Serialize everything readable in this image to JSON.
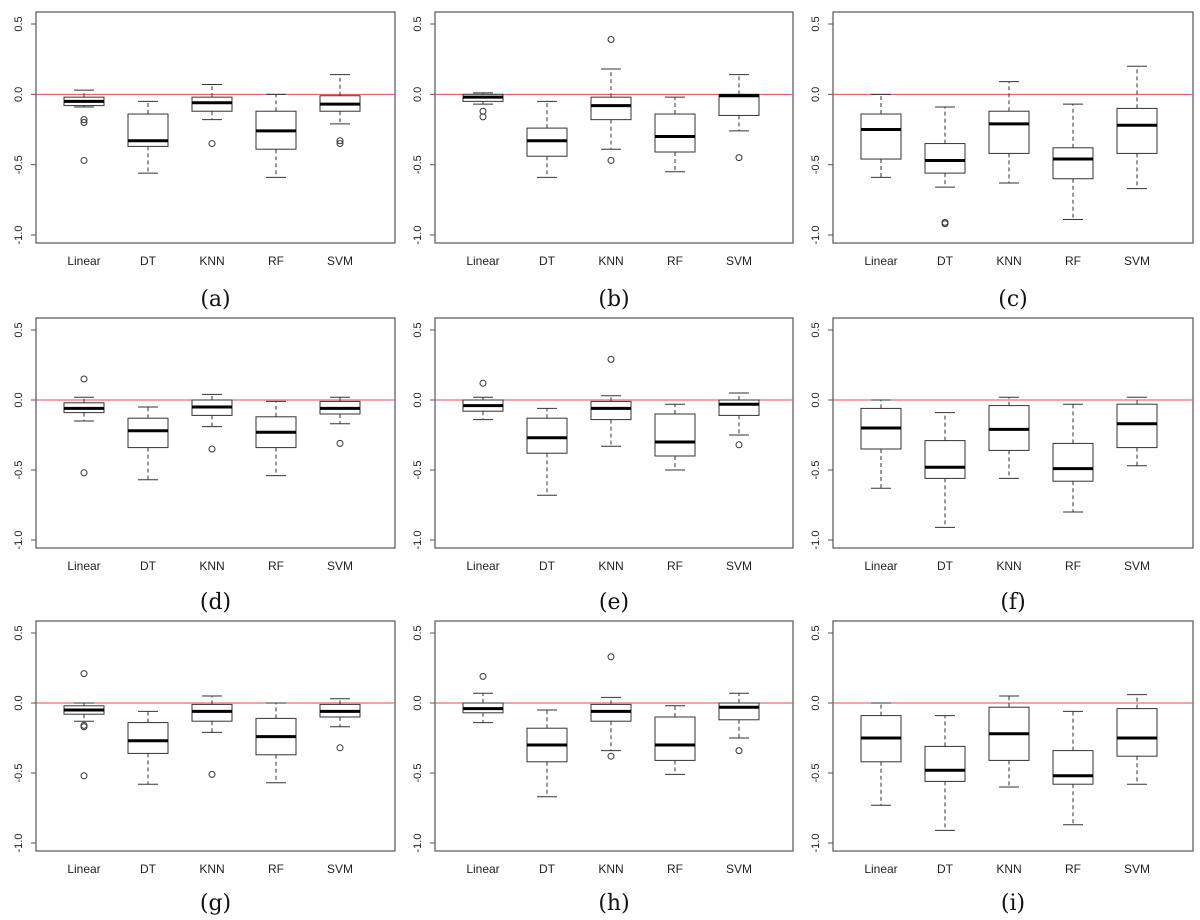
{
  "chart_data": [
    {
      "type": "boxplot",
      "panel_label": "(a)",
      "categories": [
        "Linear",
        "DT",
        "KNN",
        "RF",
        "SVM"
      ],
      "ylim": [
        -1.0,
        0.5
      ],
      "yticks": [
        "0.5",
        "0.0",
        "-0.5",
        "-1.0"
      ],
      "reference_line": 0.0,
      "boxes": [
        {
          "whisker_low": -0.09,
          "q1": -0.08,
          "median": -0.05,
          "q3": -0.02,
          "whisker_high": 0.03,
          "outliers": [
            -0.18,
            -0.2,
            -0.47
          ]
        },
        {
          "whisker_low": -0.56,
          "q1": -0.37,
          "median": -0.33,
          "q3": -0.14,
          "whisker_high": -0.05,
          "outliers": []
        },
        {
          "whisker_low": -0.18,
          "q1": -0.12,
          "median": -0.06,
          "q3": -0.02,
          "whisker_high": 0.07,
          "outliers": [
            -0.35
          ]
        },
        {
          "whisker_low": -0.59,
          "q1": -0.39,
          "median": -0.26,
          "q3": -0.12,
          "whisker_high": 0.0,
          "outliers": []
        },
        {
          "whisker_low": -0.21,
          "q1": -0.12,
          "median": -0.07,
          "q3": -0.01,
          "whisker_high": 0.14,
          "outliers": [
            -0.33,
            -0.35
          ]
        }
      ]
    },
    {
      "type": "boxplot",
      "panel_label": "(b)",
      "categories": [
        "Linear",
        "DT",
        "KNN",
        "RF",
        "SVM"
      ],
      "ylim": [
        -1.0,
        0.5
      ],
      "yticks": [
        "0.5",
        "0.0",
        "-0.5",
        "-1.0"
      ],
      "reference_line": 0.0,
      "boxes": [
        {
          "whisker_low": -0.07,
          "q1": -0.05,
          "median": -0.02,
          "q3": 0.0,
          "whisker_high": 0.01,
          "outliers": [
            -0.12,
            -0.16
          ]
        },
        {
          "whisker_low": -0.59,
          "q1": -0.44,
          "median": -0.33,
          "q3": -0.24,
          "whisker_high": -0.05,
          "outliers": []
        },
        {
          "whisker_low": -0.39,
          "q1": -0.18,
          "median": -0.08,
          "q3": -0.02,
          "whisker_high": 0.18,
          "outliers": [
            0.39,
            -0.47
          ]
        },
        {
          "whisker_low": -0.55,
          "q1": -0.41,
          "median": -0.3,
          "q3": -0.14,
          "whisker_high": -0.02,
          "outliers": []
        },
        {
          "whisker_low": -0.26,
          "q1": -0.15,
          "median": -0.01,
          "q3": 0.0,
          "whisker_high": 0.14,
          "outliers": [
            -0.45
          ]
        }
      ]
    },
    {
      "type": "boxplot",
      "panel_label": "(c)",
      "categories": [
        "Linear",
        "DT",
        "KNN",
        "RF",
        "SVM"
      ],
      "ylim": [
        -1.0,
        0.5
      ],
      "yticks": [
        "0.5",
        "0.0",
        "-0.5",
        "-1.0"
      ],
      "reference_line": 0.0,
      "boxes": [
        {
          "whisker_low": -0.59,
          "q1": -0.46,
          "median": -0.25,
          "q3": -0.14,
          "whisker_high": 0.0,
          "outliers": []
        },
        {
          "whisker_low": -0.66,
          "q1": -0.56,
          "median": -0.47,
          "q3": -0.35,
          "whisker_high": -0.09,
          "outliers": [
            -0.91,
            -0.92
          ]
        },
        {
          "whisker_low": -0.63,
          "q1": -0.42,
          "median": -0.21,
          "q3": -0.12,
          "whisker_high": 0.09,
          "outliers": []
        },
        {
          "whisker_low": -0.89,
          "q1": -0.6,
          "median": -0.46,
          "q3": -0.38,
          "whisker_high": -0.07,
          "outliers": []
        },
        {
          "whisker_low": -0.67,
          "q1": -0.42,
          "median": -0.22,
          "q3": -0.1,
          "whisker_high": 0.2,
          "outliers": []
        }
      ]
    },
    {
      "type": "boxplot",
      "panel_label": "(d)",
      "categories": [
        "Linear",
        "DT",
        "KNN",
        "RF",
        "SVM"
      ],
      "ylim": [
        -1.0,
        0.5
      ],
      "yticks": [
        "0.5",
        "0.0",
        "-0.5",
        "-1.0"
      ],
      "reference_line": 0.0,
      "boxes": [
        {
          "whisker_low": -0.15,
          "q1": -0.09,
          "median": -0.06,
          "q3": -0.02,
          "whisker_high": 0.02,
          "outliers": [
            0.15,
            -0.52
          ]
        },
        {
          "whisker_low": -0.57,
          "q1": -0.34,
          "median": -0.22,
          "q3": -0.13,
          "whisker_high": -0.05,
          "outliers": []
        },
        {
          "whisker_low": -0.19,
          "q1": -0.11,
          "median": -0.05,
          "q3": 0.0,
          "whisker_high": 0.04,
          "outliers": [
            -0.35
          ]
        },
        {
          "whisker_low": -0.54,
          "q1": -0.34,
          "median": -0.23,
          "q3": -0.12,
          "whisker_high": -0.01,
          "outliers": []
        },
        {
          "whisker_low": -0.17,
          "q1": -0.1,
          "median": -0.06,
          "q3": -0.01,
          "whisker_high": 0.02,
          "outliers": [
            -0.31
          ]
        }
      ]
    },
    {
      "type": "boxplot",
      "panel_label": "(e)",
      "categories": [
        "Linear",
        "DT",
        "KNN",
        "RF",
        "SVM"
      ],
      "ylim": [
        -1.0,
        0.5
      ],
      "yticks": [
        "0.5",
        "0.0",
        "-0.5",
        "-1.0"
      ],
      "reference_line": 0.0,
      "boxes": [
        {
          "whisker_low": -0.14,
          "q1": -0.08,
          "median": -0.04,
          "q3": 0.0,
          "whisker_high": 0.02,
          "outliers": [
            0.12
          ]
        },
        {
          "whisker_low": -0.68,
          "q1": -0.38,
          "median": -0.27,
          "q3": -0.13,
          "whisker_high": -0.06,
          "outliers": []
        },
        {
          "whisker_low": -0.33,
          "q1": -0.14,
          "median": -0.06,
          "q3": -0.01,
          "whisker_high": 0.03,
          "outliers": [
            0.29
          ]
        },
        {
          "whisker_low": -0.5,
          "q1": -0.4,
          "median": -0.3,
          "q3": -0.1,
          "whisker_high": -0.03,
          "outliers": []
        },
        {
          "whisker_low": -0.25,
          "q1": -0.11,
          "median": -0.03,
          "q3": 0.0,
          "whisker_high": 0.05,
          "outliers": [
            -0.32
          ]
        }
      ]
    },
    {
      "type": "boxplot",
      "panel_label": "(f)",
      "categories": [
        "Linear",
        "DT",
        "KNN",
        "RF",
        "SVM"
      ],
      "ylim": [
        -1.0,
        0.5
      ],
      "yticks": [
        "0.5",
        "0.0",
        "-0.5",
        "-1.0"
      ],
      "reference_line": 0.0,
      "boxes": [
        {
          "whisker_low": -0.63,
          "q1": -0.35,
          "median": -0.2,
          "q3": -0.06,
          "whisker_high": 0.0,
          "outliers": []
        },
        {
          "whisker_low": -0.91,
          "q1": -0.56,
          "median": -0.48,
          "q3": -0.29,
          "whisker_high": -0.09,
          "outliers": []
        },
        {
          "whisker_low": -0.56,
          "q1": -0.36,
          "median": -0.21,
          "q3": -0.04,
          "whisker_high": 0.02,
          "outliers": []
        },
        {
          "whisker_low": -0.8,
          "q1": -0.58,
          "median": -0.49,
          "q3": -0.31,
          "whisker_high": -0.03,
          "outliers": []
        },
        {
          "whisker_low": -0.47,
          "q1": -0.34,
          "median": -0.17,
          "q3": -0.03,
          "whisker_high": 0.02,
          "outliers": []
        }
      ]
    },
    {
      "type": "boxplot",
      "panel_label": "(g)",
      "categories": [
        "Linear",
        "DT",
        "KNN",
        "RF",
        "SVM"
      ],
      "ylim": [
        -1.0,
        0.5
      ],
      "yticks": [
        "0.5",
        "0.0",
        "-0.5",
        "-1.0"
      ],
      "reference_line": 0.0,
      "boxes": [
        {
          "whisker_low": -0.13,
          "q1": -0.08,
          "median": -0.05,
          "q3": -0.02,
          "whisker_high": 0.0,
          "outliers": [
            0.21,
            -0.16,
            -0.17,
            -0.52
          ]
        },
        {
          "whisker_low": -0.58,
          "q1": -0.36,
          "median": -0.27,
          "q3": -0.14,
          "whisker_high": -0.06,
          "outliers": []
        },
        {
          "whisker_low": -0.21,
          "q1": -0.13,
          "median": -0.06,
          "q3": -0.01,
          "whisker_high": 0.05,
          "outliers": [
            -0.51
          ]
        },
        {
          "whisker_low": -0.57,
          "q1": -0.37,
          "median": -0.24,
          "q3": -0.11,
          "whisker_high": 0.0,
          "outliers": []
        },
        {
          "whisker_low": -0.17,
          "q1": -0.1,
          "median": -0.06,
          "q3": -0.01,
          "whisker_high": 0.03,
          "outliers": [
            -0.32
          ]
        }
      ]
    },
    {
      "type": "boxplot",
      "panel_label": "(h)",
      "categories": [
        "Linear",
        "DT",
        "KNN",
        "RF",
        "SVM"
      ],
      "ylim": [
        -1.0,
        0.5
      ],
      "yticks": [
        "0.5",
        "0.0",
        "-0.5",
        "-1.0"
      ],
      "reference_line": 0.0,
      "boxes": [
        {
          "whisker_low": -0.14,
          "q1": -0.07,
          "median": -0.04,
          "q3": 0.0,
          "whisker_high": 0.07,
          "outliers": [
            0.19
          ]
        },
        {
          "whisker_low": -0.67,
          "q1": -0.42,
          "median": -0.3,
          "q3": -0.18,
          "whisker_high": -0.05,
          "outliers": []
        },
        {
          "whisker_low": -0.34,
          "q1": -0.13,
          "median": -0.06,
          "q3": -0.01,
          "whisker_high": 0.04,
          "outliers": [
            0.33,
            -0.38
          ]
        },
        {
          "whisker_low": -0.51,
          "q1": -0.41,
          "median": -0.3,
          "q3": -0.1,
          "whisker_high": -0.02,
          "outliers": []
        },
        {
          "whisker_low": -0.25,
          "q1": -0.12,
          "median": -0.03,
          "q3": 0.0,
          "whisker_high": 0.07,
          "outliers": [
            -0.34
          ]
        }
      ]
    },
    {
      "type": "boxplot",
      "panel_label": "(i)",
      "categories": [
        "Linear",
        "DT",
        "KNN",
        "RF",
        "SVM"
      ],
      "ylim": [
        -1.0,
        0.5
      ],
      "yticks": [
        "0.5",
        "0.0",
        "-0.5",
        "-1.0"
      ],
      "reference_line": 0.0,
      "boxes": [
        {
          "whisker_low": -0.73,
          "q1": -0.42,
          "median": -0.25,
          "q3": -0.09,
          "whisker_high": 0.0,
          "outliers": []
        },
        {
          "whisker_low": -0.91,
          "q1": -0.56,
          "median": -0.48,
          "q3": -0.31,
          "whisker_high": -0.09,
          "outliers": []
        },
        {
          "whisker_low": -0.6,
          "q1": -0.41,
          "median": -0.22,
          "q3": -0.03,
          "whisker_high": 0.05,
          "outliers": []
        },
        {
          "whisker_low": -0.87,
          "q1": -0.58,
          "median": -0.52,
          "q3": -0.34,
          "whisker_high": -0.06,
          "outliers": []
        },
        {
          "whisker_low": -0.58,
          "q1": -0.38,
          "median": -0.25,
          "q3": -0.04,
          "whisker_high": 0.06,
          "outliers": []
        }
      ]
    }
  ],
  "colors": {
    "reference_line": "#e84a4a",
    "box_stroke": "#333333",
    "frame": "#555555",
    "median": "#000000"
  }
}
